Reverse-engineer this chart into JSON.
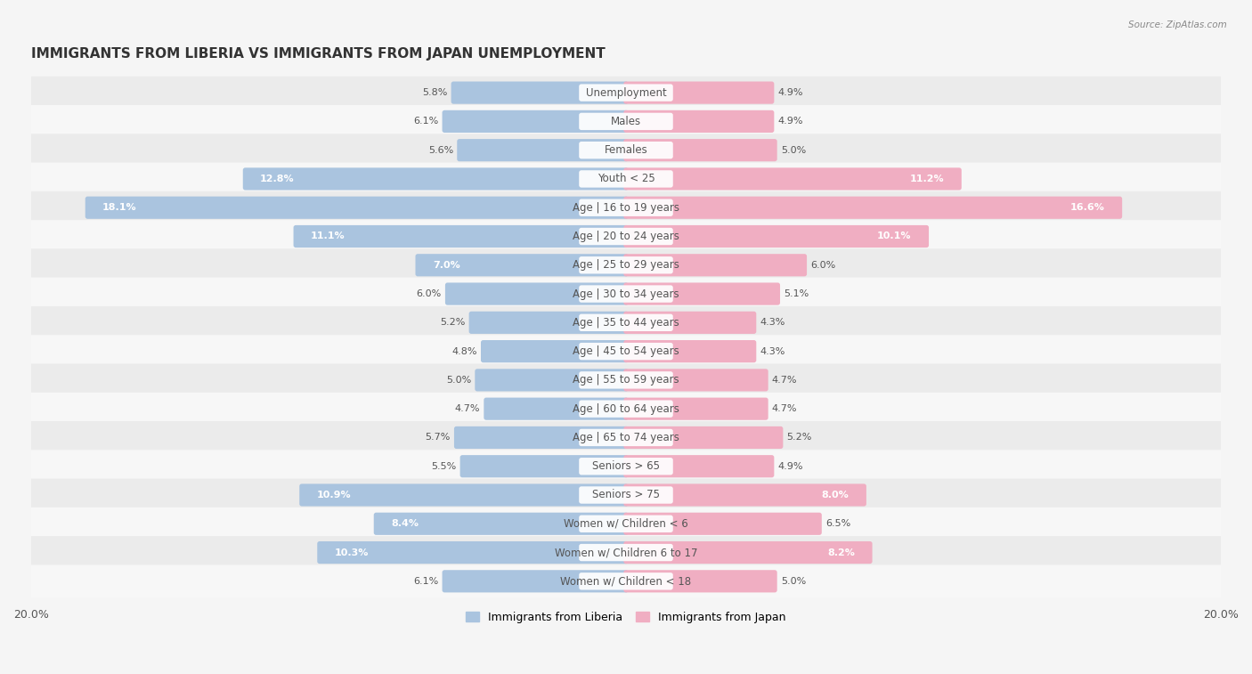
{
  "title": "IMMIGRANTS FROM LIBERIA VS IMMIGRANTS FROM JAPAN UNEMPLOYMENT",
  "source": "Source: ZipAtlas.com",
  "categories": [
    "Unemployment",
    "Males",
    "Females",
    "Youth < 25",
    "Age | 16 to 19 years",
    "Age | 20 to 24 years",
    "Age | 25 to 29 years",
    "Age | 30 to 34 years",
    "Age | 35 to 44 years",
    "Age | 45 to 54 years",
    "Age | 55 to 59 years",
    "Age | 60 to 64 years",
    "Age | 65 to 74 years",
    "Seniors > 65",
    "Seniors > 75",
    "Women w/ Children < 6",
    "Women w/ Children 6 to 17",
    "Women w/ Children < 18"
  ],
  "liberia_values": [
    5.8,
    6.1,
    5.6,
    12.8,
    18.1,
    11.1,
    7.0,
    6.0,
    5.2,
    4.8,
    5.0,
    4.7,
    5.7,
    5.5,
    10.9,
    8.4,
    10.3,
    6.1
  ],
  "japan_values": [
    4.9,
    4.9,
    5.0,
    11.2,
    16.6,
    10.1,
    6.0,
    5.1,
    4.3,
    4.3,
    4.7,
    4.7,
    5.2,
    4.9,
    8.0,
    6.5,
    8.2,
    5.0
  ],
  "liberia_color": "#aac4df",
  "japan_color": "#f0aec2",
  "axis_max": 20.0,
  "row_color_even": "#f0f0f0",
  "row_color_odd": "#fafafa",
  "title_fontsize": 11,
  "label_fontsize": 8.5,
  "value_fontsize": 8.0,
  "legend_label_liberia": "Immigrants from Liberia",
  "legend_label_japan": "Immigrants from Japan"
}
